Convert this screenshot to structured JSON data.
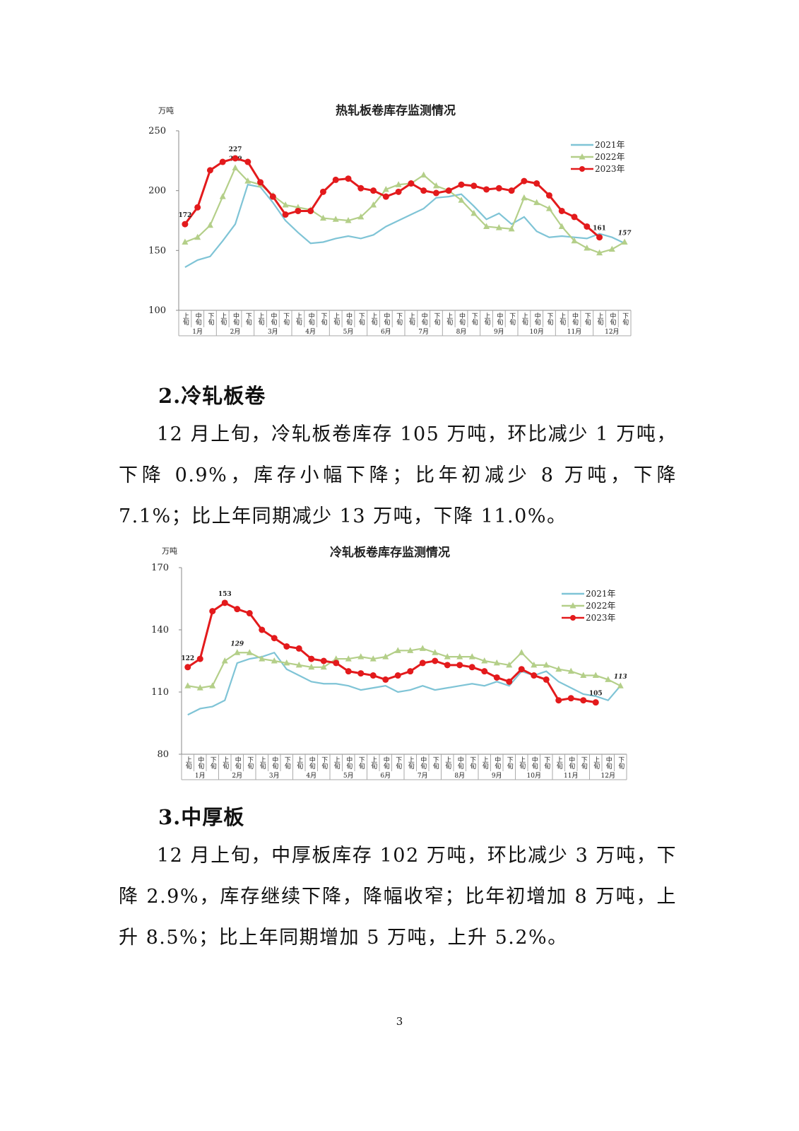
{
  "chart_data": [
    {
      "type": "line",
      "title": "热轧板卷库存监测情况",
      "y_label": "万吨",
      "categories": [
        "上旬",
        "中旬",
        "下旬",
        "上旬",
        "中旬",
        "下旬",
        "上旬",
        "中旬",
        "下旬",
        "上旬",
        "中旬",
        "下旬",
        "上旬",
        "中旬",
        "下旬",
        "上旬",
        "中旬",
        "下旬",
        "上旬",
        "中旬",
        "下旬",
        "上旬",
        "中旬",
        "下旬",
        "上旬",
        "中旬",
        "下旬",
        "上旬",
        "中旬",
        "下旬",
        "上旬",
        "中旬",
        "下旬",
        "上旬",
        "中旬",
        "下旬"
      ],
      "months": [
        "1月",
        "2月",
        "3月",
        "4月",
        "5月",
        "6月",
        "7月",
        "8月",
        "9月",
        "10月",
        "11月",
        "12月"
      ],
      "ylim": [
        100,
        250
      ],
      "yticks": [
        100,
        150,
        200,
        250
      ],
      "grid": false,
      "series": [
        {
          "name": "2021年",
          "color": "#7fc4d6",
          "marker": "none",
          "values": [
            136,
            142,
            145,
            158,
            172,
            205,
            203,
            190,
            175,
            165,
            156,
            157,
            160,
            162,
            160,
            163,
            170,
            175,
            180,
            185,
            194,
            195,
            197,
            187,
            176,
            181,
            172,
            178,
            166,
            161,
            162,
            161,
            160,
            164,
            161,
            156
          ],
          "label_points": []
        },
        {
          "name": "2022年",
          "color": "#b4cf89",
          "marker": "triangle",
          "values": [
            157,
            161,
            171,
            195,
            219,
            208,
            205,
            196,
            188,
            186,
            184,
            177,
            176,
            175,
            178,
            188,
            201,
            205,
            206,
            213,
            204,
            200,
            192,
            181,
            170,
            169,
            168,
            194,
            190,
            185,
            170,
            158,
            152,
            148,
            151,
            157
          ],
          "label_points": [
            4,
            35
          ]
        },
        {
          "name": "2023年",
          "color": "#e31a1c",
          "marker": "circle",
          "values": [
            172,
            186,
            217,
            224,
            227,
            224,
            207,
            195,
            180,
            183,
            183,
            199,
            209,
            210,
            202,
            200,
            195,
            199,
            206,
            200,
            198,
            200,
            205,
            204,
            201,
            202,
            200,
            208,
            206,
            196,
            183,
            178,
            170,
            161,
            null,
            null
          ],
          "label_points": [
            0,
            4,
            33
          ]
        }
      ]
    },
    {
      "type": "line",
      "title": "冷轧板卷库存监测情况",
      "y_label": "万吨",
      "categories": [
        "上旬",
        "中旬",
        "下旬",
        "上旬",
        "中旬",
        "下旬",
        "上旬",
        "中旬",
        "下旬",
        "上旬",
        "中旬",
        "下旬",
        "上旬",
        "中旬",
        "下旬",
        "上旬",
        "中旬",
        "下旬",
        "上旬",
        "中旬",
        "下旬",
        "上旬",
        "中旬",
        "下旬",
        "上旬",
        "中旬",
        "下旬",
        "上旬",
        "中旬",
        "下旬",
        "上旬",
        "中旬",
        "下旬",
        "上旬",
        "中旬",
        "下旬"
      ],
      "months": [
        "1月",
        "2月",
        "3月",
        "4月",
        "5月",
        "6月",
        "7月",
        "8月",
        "9月",
        "10月",
        "11月",
        "12月"
      ],
      "ylim": [
        80,
        170
      ],
      "yticks": [
        80,
        110,
        140,
        170
      ],
      "grid": false,
      "series": [
        {
          "name": "2021年",
          "color": "#7fc4d6",
          "marker": "none",
          "values": [
            99,
            102,
            103,
            106,
            124,
            126,
            127,
            129,
            121,
            118,
            115,
            114,
            114,
            113,
            111,
            112,
            113,
            110,
            111,
            113,
            111,
            112,
            113,
            114,
            113,
            115,
            113,
            120,
            118,
            120,
            115,
            112,
            109,
            108,
            106,
            113
          ],
          "label_points": []
        },
        {
          "name": "2022年",
          "color": "#b4cf89",
          "marker": "triangle",
          "values": [
            113,
            112,
            113,
            125,
            129,
            129,
            126,
            125,
            124,
            123,
            122,
            122,
            126,
            126,
            127,
            126,
            127,
            130,
            130,
            131,
            129,
            127,
            127,
            127,
            125,
            124,
            123,
            129,
            123,
            123,
            121,
            120,
            118,
            118,
            116,
            113
          ],
          "label_points": [
            4,
            35
          ]
        },
        {
          "name": "2023年",
          "color": "#e31a1c",
          "marker": "circle",
          "values": [
            122,
            126,
            149,
            153,
            150,
            148,
            140,
            136,
            132,
            131,
            126,
            125,
            124,
            120,
            119,
            118,
            116,
            118,
            120,
            124,
            125,
            123,
            123,
            122,
            120,
            117,
            115,
            121,
            118,
            116,
            106,
            107,
            106,
            105,
            null,
            null
          ],
          "label_points": [
            0,
            3,
            33
          ]
        }
      ]
    }
  ],
  "sections": [
    {
      "heading": "2.冷轧板卷",
      "paragraph": "12 月上旬，冷轧板卷库存 105 万吨，环比减少 1 万吨，下降 0.9%，库存小幅下降；比年初减少 8 万吨，下降 7.1%；比上年同期减少 13 万吨，下降 11.0%。"
    },
    {
      "heading": "3.中厚板",
      "paragraph": "12 月上旬，中厚板库存 102 万吨，环比减少 3 万吨，下降 2.9%，库存继续下降，降幅收窄；比年初增加 8 万吨，上升 8.5%；比上年同期增加 5 万吨，上升 5.2%。"
    }
  ],
  "page_number": "3"
}
